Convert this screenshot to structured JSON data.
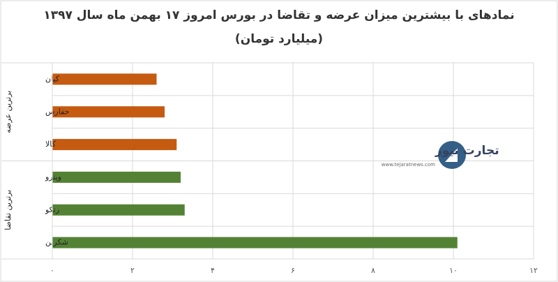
{
  "chart_data": {
    "type": "bar",
    "orientation": "horizontal",
    "title": "نمادهای با بیشترین میزان عرضه و تقاضا در بورس امروز ۱۷ بهمن ماه سال ۱۳۹۷",
    "subtitle": "(میلیارد تومان)",
    "series": [
      {
        "name": "برترین عرضه",
        "color": "#c55a11",
        "categories": [
          "کیان",
          "حفارس",
          "کالا"
        ],
        "values": [
          2.6,
          2.8,
          3.1
        ]
      },
      {
        "name": "برترین تقاضا",
        "color": "#548235",
        "categories": [
          "وپترو",
          "رتکو",
          "شکربن"
        ],
        "values": [
          3.2,
          3.3,
          10.1
        ]
      }
    ],
    "xlim": [
      0,
      12
    ],
    "xticks": [
      {
        "value": 0,
        "label": "۰"
      },
      {
        "value": 2,
        "label": "۲"
      },
      {
        "value": 4,
        "label": "۴"
      },
      {
        "value": 6,
        "label": "۶"
      },
      {
        "value": 8,
        "label": "۸"
      },
      {
        "value": 10,
        "label": "۱۰"
      },
      {
        "value": 12,
        "label": "۱۲"
      }
    ],
    "grid": true,
    "watermark": {
      "brand": "تجارت نیوز",
      "url": "www.tejaratnews.com"
    }
  }
}
